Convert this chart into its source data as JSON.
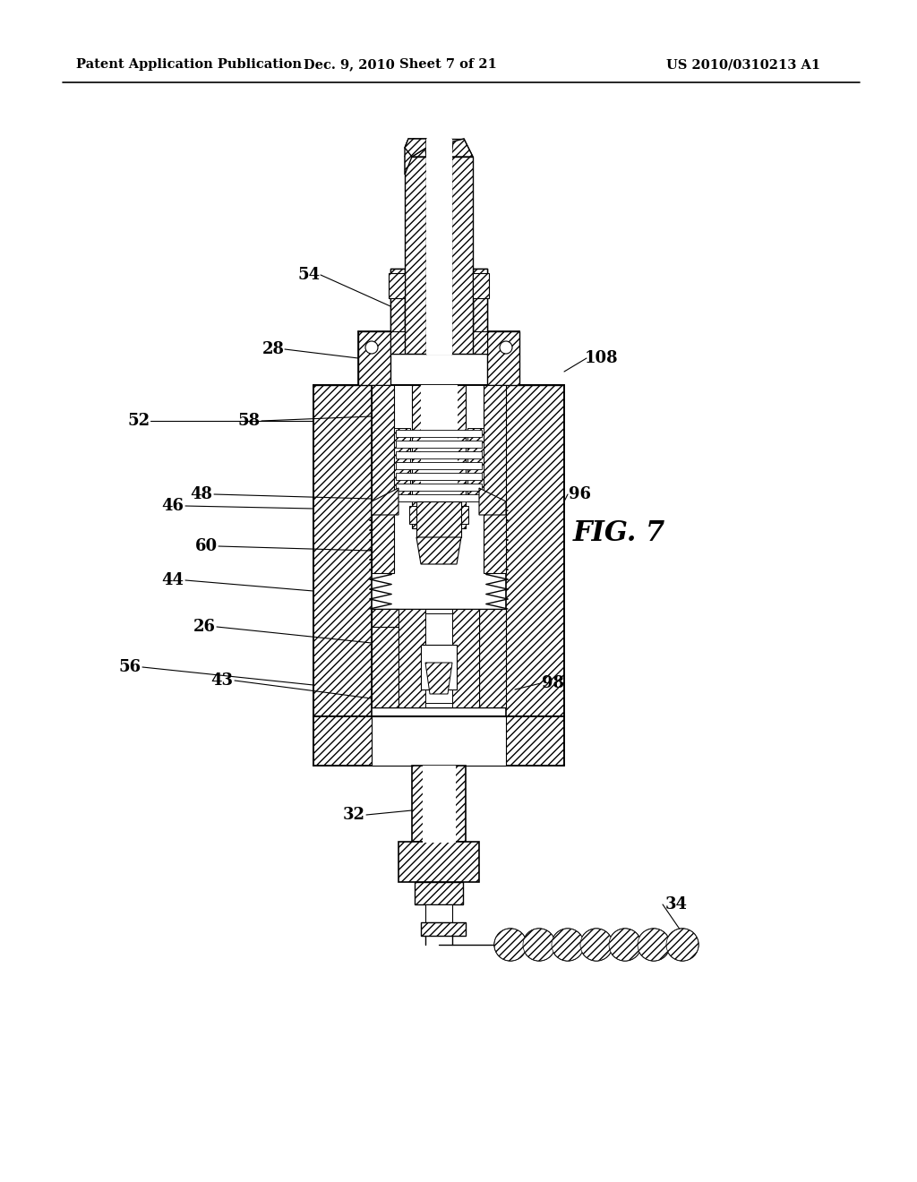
{
  "header_left": "Patent Application Publication",
  "header_center": "Dec. 9, 2010   Sheet 7 of 21",
  "header_right": "US 2010/0310213 A1",
  "fig_label": "FIG. 7",
  "bg_color": "#ffffff",
  "line_color": "#000000"
}
